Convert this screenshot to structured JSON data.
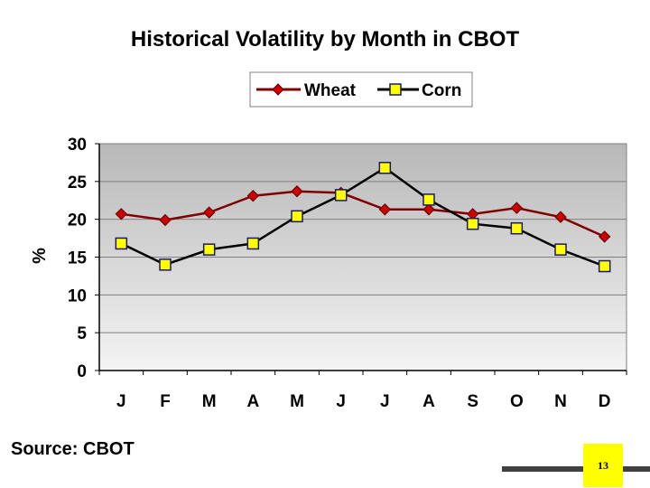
{
  "slide": {
    "title": "Historical Volatility by Month in CBOT",
    "source": "Source: CBOT",
    "page_number": "13"
  },
  "colors": {
    "wheat_line": "#800000",
    "wheat_marker": "#cc0000",
    "corn_line": "#000000",
    "corn_marker": "#ffff00",
    "plot_bg_top": "#b8b8b8",
    "plot_bg_bottom": "#f4f4f4",
    "accent_box": "#ffff00"
  },
  "chart_data": {
    "type": "line",
    "title": "Historical Volatility by Month in CBOT",
    "xlabel": "",
    "ylabel": "%",
    "ylim": [
      0,
      30
    ],
    "yticks": [
      0,
      5,
      10,
      15,
      20,
      25,
      30
    ],
    "grid": true,
    "legend": "top-center",
    "categories": [
      "J",
      "F",
      "M",
      "A",
      "M",
      "J",
      "J",
      "A",
      "S",
      "O",
      "N",
      "D"
    ],
    "series": [
      {
        "name": "Wheat",
        "marker": "diamond",
        "values": [
          20.7,
          19.9,
          20.9,
          23.1,
          23.7,
          23.5,
          21.3,
          21.3,
          20.7,
          21.5,
          20.3,
          17.7
        ]
      },
      {
        "name": "Corn",
        "marker": "square",
        "values": [
          16.8,
          14.0,
          16.0,
          16.8,
          20.4,
          23.2,
          26.8,
          22.6,
          19.4,
          18.8,
          16.0,
          13.8
        ]
      }
    ]
  }
}
